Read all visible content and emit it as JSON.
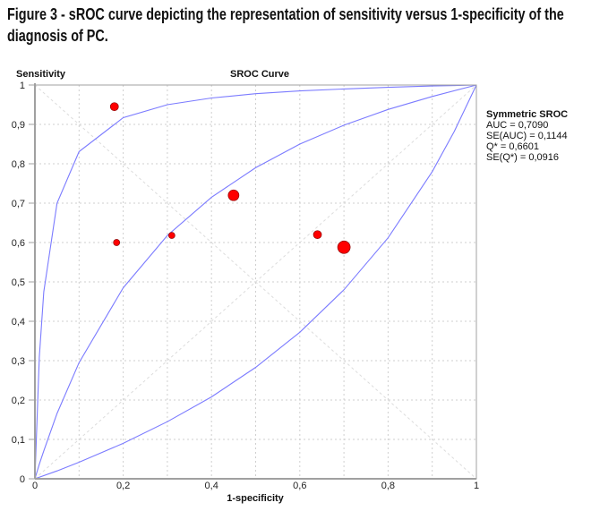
{
  "figure_title": "Figure 3 - sROC curve depicting the representation of sensitivity versus 1-specificity of the diagnosis of PC.",
  "chart_data": {
    "type": "scatter",
    "title": "SROC Curve",
    "xlabel": "1-specificity",
    "ylabel": "Sensitivity",
    "xlim": [
      0,
      1
    ],
    "ylim": [
      0,
      1
    ],
    "grid": true,
    "x_ticks": [
      "0",
      "0,2",
      "0,4",
      "0,6",
      "0,8",
      "1"
    ],
    "y_ticks": [
      "0",
      "0,1",
      "0,2",
      "0,3",
      "0,4",
      "0,5",
      "0,6",
      "0,7",
      "0,8",
      "0,9",
      "1"
    ],
    "legend_position": "right",
    "colors": {
      "points": "#ff0000",
      "curves": "#7b7bff",
      "grid": "#cfcfcf",
      "axis": "#a0a0a0"
    },
    "points": [
      {
        "x": 0.18,
        "y": 0.945,
        "weight": 4.5
      },
      {
        "x": 0.185,
        "y": 0.6,
        "weight": 3.5
      },
      {
        "x": 0.31,
        "y": 0.618,
        "weight": 3.5
      },
      {
        "x": 0.45,
        "y": 0.72,
        "weight": 6
      },
      {
        "x": 0.64,
        "y": 0.62,
        "weight": 4.5
      },
      {
        "x": 0.7,
        "y": 0.588,
        "weight": 7
      }
    ],
    "curves": [
      {
        "x": [
          0,
          0.01,
          0.02,
          0.05,
          0.1,
          0.2,
          0.3,
          0.4,
          0.5,
          0.6,
          0.7,
          0.8,
          0.9,
          1
        ],
        "y": [
          0,
          0.309,
          0.475,
          0.7,
          0.831,
          0.917,
          0.95,
          0.967,
          0.978,
          0.985,
          0.99,
          0.994,
          0.9975,
          1
        ]
      },
      {
        "x": [
          0,
          0.01,
          0.02,
          0.05,
          0.1,
          0.2,
          0.3,
          0.4,
          0.5,
          0.6,
          0.7,
          0.8,
          0.9,
          1
        ],
        "y": [
          0,
          0.037,
          0.071,
          0.166,
          0.295,
          0.485,
          0.618,
          0.715,
          0.79,
          0.85,
          0.898,
          0.938,
          0.971,
          1
        ]
      },
      {
        "x": [
          0,
          0.05,
          0.1,
          0.2,
          0.3,
          0.4,
          0.5,
          0.6,
          0.7,
          0.8,
          0.9,
          0.95,
          1
        ],
        "y": [
          0,
          0.02,
          0.042,
          0.09,
          0.145,
          0.208,
          0.283,
          0.372,
          0.48,
          0.612,
          0.78,
          0.882,
          1
        ]
      }
    ],
    "legend": {
      "title": "Symmetric SROC",
      "lines": [
        "AUC = 0,7090",
        "SE(AUC) = 0,1144",
        "Q* = 0,6601",
        "SE(Q*) = 0,0916"
      ]
    }
  }
}
